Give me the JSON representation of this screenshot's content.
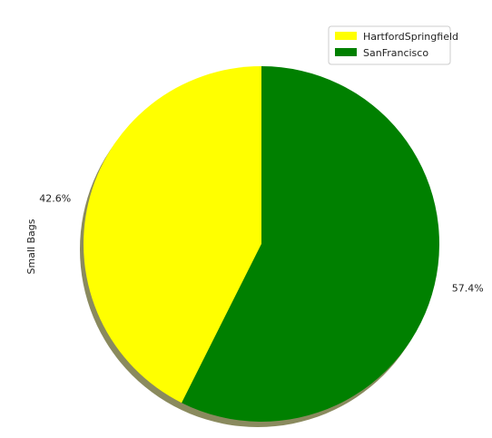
{
  "chart_data": {
    "type": "pie",
    "ylabel": "Small Bags",
    "labels": [
      "HartfordSpringfield",
      "SanFrancisco"
    ],
    "values": [
      42.6,
      57.4
    ],
    "autopct": [
      "42.6%",
      "57.4%"
    ],
    "colors": [
      "#ffff00",
      "#008000"
    ],
    "shadow": true,
    "start_angle_deg": 90,
    "counterclockwise": true,
    "legend_position": "top-right"
  }
}
